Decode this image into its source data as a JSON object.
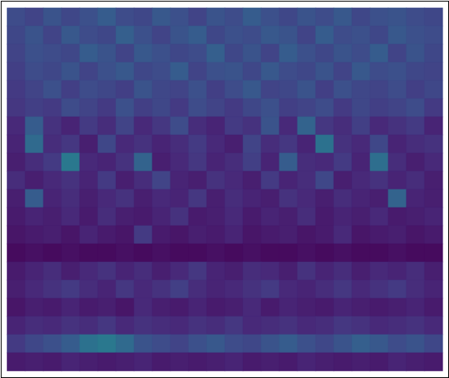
{
  "chart_data": {
    "type": "heatmap",
    "tick_labels": false,
    "color": "viridis",
    "zlim": [
      0,
      0.7
    ],
    "cells": [
      [
        0.16,
        0.14,
        0.18,
        0.15,
        0.17,
        0.2,
        0.16,
        0.15,
        0.19,
        0.17,
        0.14,
        0.18,
        0.16,
        0.2,
        0.17,
        0.15,
        0.18,
        0.16,
        0.19,
        0.15,
        0.17,
        0.18,
        0.16,
        0.15
      ],
      [
        0.15,
        0.18,
        0.14,
        0.19,
        0.16,
        0.15,
        0.21,
        0.17,
        0.14,
        0.18,
        0.2,
        0.15,
        0.17,
        0.16,
        0.19,
        0.18,
        0.14,
        0.2,
        0.16,
        0.17,
        0.15,
        0.19,
        0.17,
        0.16
      ],
      [
        0.14,
        0.17,
        0.16,
        0.15,
        0.2,
        0.18,
        0.14,
        0.19,
        0.17,
        0.15,
        0.16,
        0.21,
        0.15,
        0.18,
        0.14,
        0.2,
        0.17,
        0.15,
        0.18,
        0.16,
        0.2,
        0.14,
        0.18,
        0.15
      ],
      [
        0.13,
        0.16,
        0.15,
        0.18,
        0.14,
        0.17,
        0.19,
        0.15,
        0.16,
        0.2,
        0.14,
        0.17,
        0.18,
        0.15,
        0.19,
        0.16,
        0.15,
        0.18,
        0.14,
        0.19,
        0.16,
        0.17,
        0.15,
        0.14
      ],
      [
        0.12,
        0.14,
        0.17,
        0.13,
        0.16,
        0.15,
        0.13,
        0.18,
        0.15,
        0.14,
        0.17,
        0.13,
        0.16,
        0.19,
        0.14,
        0.15,
        0.18,
        0.13,
        0.17,
        0.15,
        0.14,
        0.16,
        0.13,
        0.15
      ],
      [
        0.11,
        0.13,
        0.12,
        0.16,
        0.14,
        0.12,
        0.17,
        0.13,
        0.15,
        0.12,
        0.16,
        0.14,
        0.12,
        0.15,
        0.17,
        0.13,
        0.14,
        0.16,
        0.12,
        0.15,
        0.13,
        0.14,
        0.16,
        0.12
      ],
      [
        0.08,
        0.2,
        0.1,
        0.07,
        0.12,
        0.09,
        0.14,
        0.08,
        0.11,
        0.16,
        0.09,
        0.07,
        0.12,
        0.1,
        0.18,
        0.08,
        0.22,
        0.11,
        0.09,
        0.13,
        0.08,
        0.1,
        0.12,
        0.07
      ],
      [
        0.07,
        0.24,
        0.09,
        0.11,
        0.06,
        0.15,
        0.08,
        0.1,
        0.07,
        0.09,
        0.12,
        0.08,
        0.06,
        0.14,
        0.09,
        0.11,
        0.07,
        0.26,
        0.1,
        0.08,
        0.15,
        0.07,
        0.09,
        0.1
      ],
      [
        0.06,
        0.09,
        0.12,
        0.28,
        0.08,
        0.07,
        0.1,
        0.22,
        0.06,
        0.08,
        0.11,
        0.07,
        0.09,
        0.13,
        0.07,
        0.2,
        0.09,
        0.08,
        0.12,
        0.07,
        0.25,
        0.09,
        0.06,
        0.08
      ],
      [
        0.09,
        0.06,
        0.08,
        0.1,
        0.07,
        0.12,
        0.06,
        0.09,
        0.14,
        0.07,
        0.06,
        0.1,
        0.08,
        0.06,
        0.12,
        0.07,
        0.09,
        0.15,
        0.06,
        0.08,
        0.1,
        0.07,
        0.09,
        0.06
      ],
      [
        0.06,
        0.2,
        0.07,
        0.09,
        0.06,
        0.08,
        0.1,
        0.06,
        0.08,
        0.07,
        0.11,
        0.06,
        0.09,
        0.07,
        0.06,
        0.1,
        0.08,
        0.06,
        0.09,
        0.07,
        0.06,
        0.22,
        0.07,
        0.06
      ],
      [
        0.05,
        0.07,
        0.06,
        0.08,
        0.05,
        0.09,
        0.06,
        0.05,
        0.07,
        0.1,
        0.05,
        0.06,
        0.08,
        0.05,
        0.07,
        0.06,
        0.09,
        0.05,
        0.07,
        0.06,
        0.08,
        0.05,
        0.06,
        0.07
      ],
      [
        0.04,
        0.05,
        0.06,
        0.04,
        0.07,
        0.05,
        0.04,
        0.12,
        0.05,
        0.04,
        0.06,
        0.05,
        0.07,
        0.04,
        0.05,
        0.06,
        0.04,
        0.05,
        0.08,
        0.04,
        0.05,
        0.06,
        0.04,
        0.05
      ],
      [
        0.02,
        0.03,
        0.02,
        0.03,
        0.02,
        0.02,
        0.03,
        0.02,
        0.03,
        0.02,
        0.02,
        0.03,
        0.02,
        0.03,
        0.02,
        0.02,
        0.03,
        0.02,
        0.03,
        0.02,
        0.02,
        0.03,
        0.02,
        0.02
      ],
      [
        0.05,
        0.07,
        0.09,
        0.06,
        0.08,
        0.1,
        0.07,
        0.09,
        0.06,
        0.08,
        0.11,
        0.07,
        0.06,
        0.09,
        0.08,
        0.06,
        0.1,
        0.07,
        0.09,
        0.06,
        0.08,
        0.07,
        0.09,
        0.06
      ],
      [
        0.06,
        0.08,
        0.1,
        0.12,
        0.09,
        0.07,
        0.11,
        0.08,
        0.1,
        0.13,
        0.09,
        0.07,
        0.08,
        0.1,
        0.12,
        0.08,
        0.07,
        0.09,
        0.11,
        0.08,
        0.1,
        0.12,
        0.09,
        0.07
      ],
      [
        0.04,
        0.06,
        0.05,
        0.07,
        0.05,
        0.06,
        0.04,
        0.08,
        0.06,
        0.05,
        0.07,
        0.05,
        0.06,
        0.08,
        0.05,
        0.07,
        0.06,
        0.05,
        0.07,
        0.06,
        0.05,
        0.06,
        0.07,
        0.05
      ],
      [
        0.07,
        0.09,
        0.08,
        0.1,
        0.09,
        0.11,
        0.08,
        0.1,
        0.09,
        0.08,
        0.1,
        0.09,
        0.11,
        0.08,
        0.09,
        0.1,
        0.08,
        0.09,
        0.11,
        0.1,
        0.08,
        0.09,
        0.1,
        0.08
      ],
      [
        0.12,
        0.15,
        0.17,
        0.2,
        0.26,
        0.28,
        0.24,
        0.18,
        0.16,
        0.14,
        0.17,
        0.19,
        0.16,
        0.15,
        0.18,
        0.2,
        0.17,
        0.15,
        0.18,
        0.21,
        0.19,
        0.16,
        0.18,
        0.15
      ],
      [
        0.05,
        0.06,
        0.05,
        0.07,
        0.06,
        0.05,
        0.06,
        0.07,
        0.05,
        0.06,
        0.05,
        0.06,
        0.07,
        0.05,
        0.06,
        0.05,
        0.07,
        0.06,
        0.05,
        0.06,
        0.05,
        0.07,
        0.06,
        0.05
      ]
    ]
  }
}
